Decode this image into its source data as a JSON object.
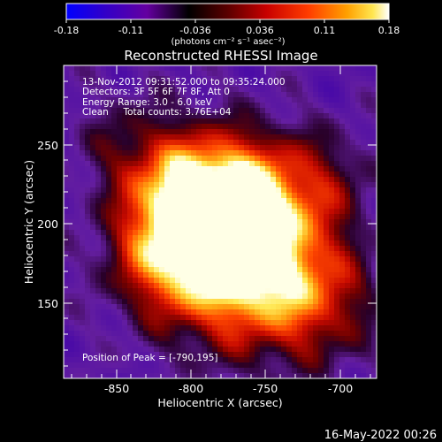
{
  "colorbar": {
    "ticks": [
      "-0.18",
      "-0.11",
      "-0.036",
      "0.036",
      "0.11",
      "0.18"
    ],
    "units": "(photons cm⁻² s⁻¹ asec⁻²)",
    "colors": [
      "#0000ff",
      "#3200c8",
      "#6400a0",
      "#000000",
      "#5a0000",
      "#c80000",
      "#ff3c00",
      "#ffa000",
      "#ffe650",
      "#ffffff"
    ]
  },
  "title": "Reconstructed RHESSI Image",
  "annotations": [
    "13-Nov-2012 09:31:52.000 to 09:35:24.000",
    "Detectors: 3F 5F 6F 7F 8F, Att 0",
    "Energy Range: 3.0 - 6.0 keV",
    "Clean     Total counts: 3.76E+04"
  ],
  "peak_label": "Position of Peak = [-790,195]",
  "x_axis": {
    "label": "Heliocentric X (arcsec)",
    "ticks": [
      "-850",
      "-800",
      "-750",
      "-700"
    ],
    "range": [
      -880,
      -690
    ]
  },
  "y_axis": {
    "label": "Heliocentric Y (arcsec)",
    "ticks": [
      "150",
      "200",
      "250"
    ],
    "range": [
      105,
      295
    ]
  },
  "footer_timestamp": "16-May-2022 00:26"
}
